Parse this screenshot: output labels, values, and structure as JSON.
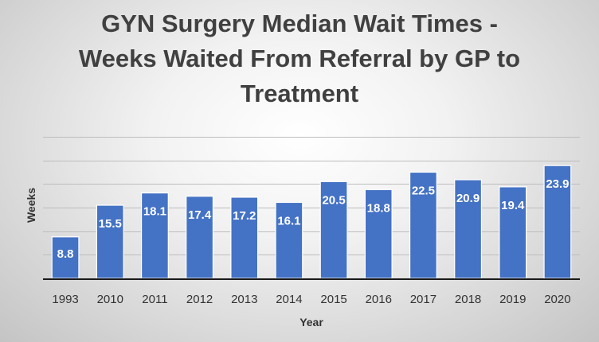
{
  "chart_data": {
    "type": "bar",
    "title_lines": [
      "GYN Surgery Median Wait Times -",
      "Weeks Waited From Referral by GP to",
      "Treatment"
    ],
    "xlabel": "Year",
    "ylabel": "Weeks",
    "categories": [
      "1993",
      "2010",
      "2011",
      "2012",
      "2013",
      "2014",
      "2015",
      "2016",
      "2017",
      "2018",
      "2019",
      "2020"
    ],
    "values": [
      8.8,
      15.5,
      18.1,
      17.4,
      17.2,
      16.1,
      20.5,
      18.8,
      22.5,
      20.9,
      19.4,
      23.9
    ],
    "ylim": [
      0,
      30
    ],
    "y_ticks": [
      0,
      5,
      10,
      15,
      20,
      25,
      30
    ],
    "y_tick_labels_shown": false,
    "grid": true,
    "legend": "none",
    "bar_color": "#4472c4",
    "data_label_color": "#ffffff"
  }
}
